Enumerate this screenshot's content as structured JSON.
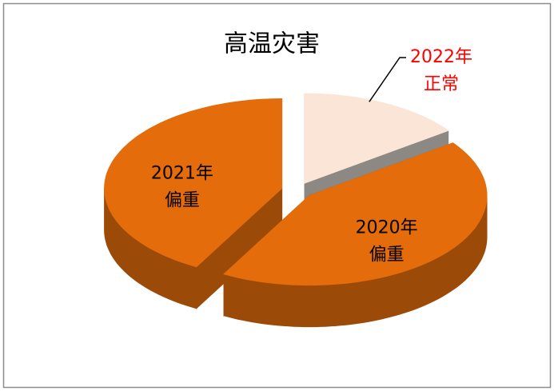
{
  "chart_data": {
    "type": "pie3d",
    "title": "高温灾害",
    "categories": [
      "2022年",
      "2020年",
      "2021年"
    ],
    "statuses": [
      "正常",
      "偏重",
      "偏重"
    ],
    "values": [
      15,
      43,
      42
    ],
    "colors": [
      "#fbe5d6",
      "#e46c0a",
      "#e46c0a"
    ],
    "side_colors": [
      "#8c8884",
      "#9c4a08",
      "#9c4a08"
    ],
    "label_colors": [
      "#ff0000",
      "#000000",
      "#000000"
    ]
  }
}
